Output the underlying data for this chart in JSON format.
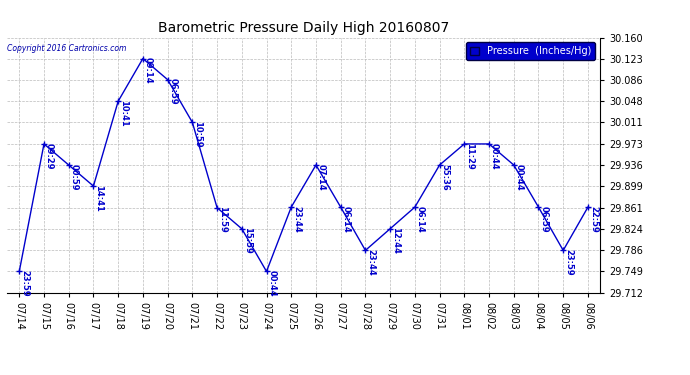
{
  "title": "Barometric Pressure Daily High 20160807",
  "copyright": "Copyright 2016 Cartronics.com",
  "legend_label": "Pressure  (Inches/Hg)",
  "line_color": "#0000cc",
  "bg_color": "#ffffff",
  "grid_color": "#bbbbbb",
  "label_color": "#0000cc",
  "dates": [
    "07/14",
    "07/15",
    "07/16",
    "07/17",
    "07/18",
    "07/19",
    "07/20",
    "07/21",
    "07/22",
    "07/23",
    "07/24",
    "07/25",
    "07/26",
    "07/27",
    "07/28",
    "07/29",
    "07/30",
    "07/31",
    "08/01",
    "08/02",
    "08/03",
    "08/04",
    "08/05",
    "08/06"
  ],
  "values": [
    29.749,
    29.973,
    29.936,
    29.899,
    30.048,
    30.123,
    30.086,
    30.011,
    29.861,
    29.824,
    29.749,
    29.862,
    29.936,
    29.862,
    29.786,
    29.824,
    29.862,
    29.936,
    29.973,
    29.973,
    29.936,
    29.862,
    29.786,
    29.862
  ],
  "point_labels": [
    "23:59",
    "09:29",
    "00:59",
    "14:41",
    "10:41",
    "09:14",
    "06:59",
    "10:59",
    "11:59",
    "15:59",
    "00:44",
    "23:44",
    "07:14",
    "06:14",
    "23:44",
    "12:44",
    "06:14",
    "55:36",
    "11:29",
    "00:44",
    "00:44",
    "06:59",
    "23:59",
    "22:59"
  ],
  "yticks": [
    29.712,
    29.749,
    29.786,
    29.824,
    29.861,
    29.899,
    29.936,
    29.973,
    30.011,
    30.048,
    30.086,
    30.123,
    30.16
  ],
  "ylim_min": 29.712,
  "ylim_max": 30.16,
  "title_fontsize": 10,
  "tick_fontsize": 7,
  "label_fontsize": 6,
  "legend_fontsize": 7,
  "figwidth": 6.9,
  "figheight": 3.75,
  "dpi": 100
}
